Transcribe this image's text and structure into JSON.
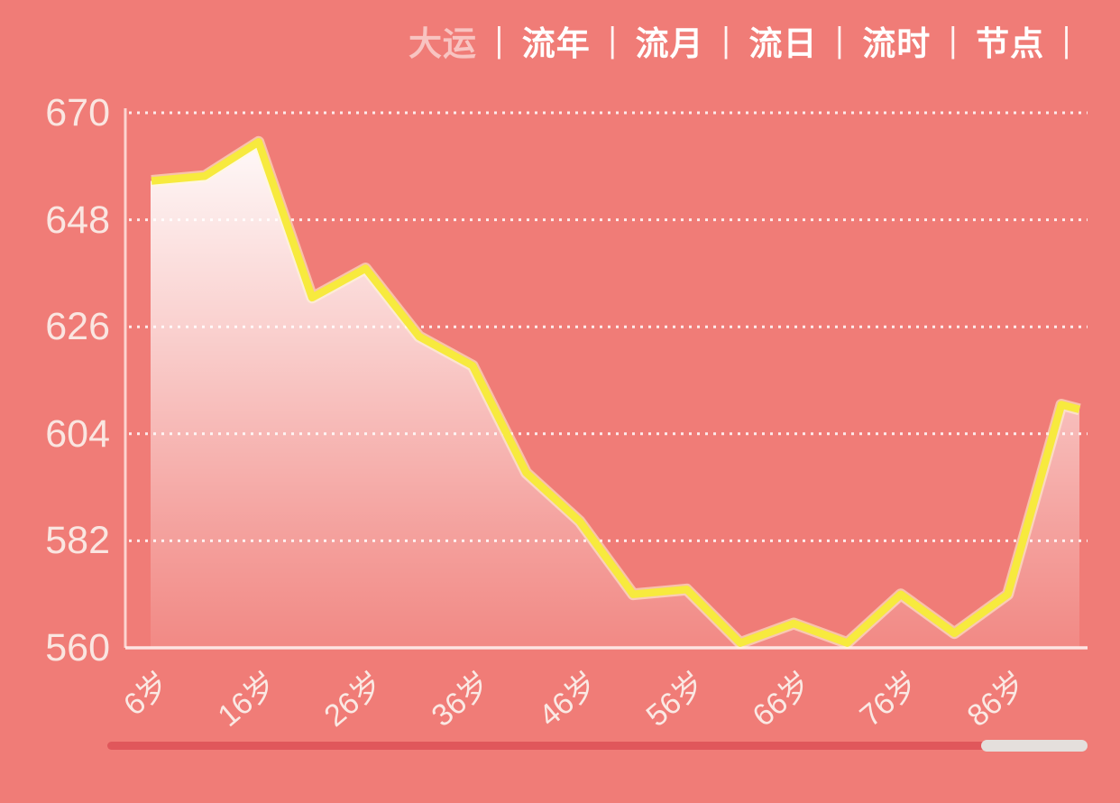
{
  "header": {
    "tabs": [
      {
        "label": "大运",
        "dim": true
      },
      {
        "label": "流年",
        "dim": false
      },
      {
        "label": "流月",
        "dim": false
      },
      {
        "label": "流日",
        "dim": false
      },
      {
        "label": "流时",
        "dim": false
      },
      {
        "label": "节点",
        "dim": false
      }
    ],
    "separator": "|"
  },
  "chart_data": {
    "type": "area",
    "title": "",
    "x_unit": "岁",
    "x": [
      6,
      11,
      16,
      21,
      26,
      31,
      36,
      41,
      46,
      51,
      56,
      61,
      66,
      71,
      76,
      81,
      86,
      91
    ],
    "values": [
      656,
      657,
      664,
      632,
      638,
      624,
      618,
      596,
      586,
      571,
      572,
      561,
      565,
      561,
      571,
      563,
      571,
      610
    ],
    "clipped_end_value": 609,
    "y_ticks": [
      670,
      648,
      626,
      604,
      582,
      560
    ],
    "x_tick_labels": [
      "6岁",
      "16岁",
      "26岁",
      "36岁",
      "46岁",
      "56岁",
      "66岁",
      "76岁",
      "86岁"
    ],
    "ylim": [
      560,
      670
    ],
    "grid": "horizontal-dotted",
    "legend": "none",
    "line_color": "#F7EA3E",
    "area_fill": "white gradient fading downward over coral background"
  },
  "colors": {
    "background": "#F07C77",
    "line": "#F7EA3E",
    "axis": "rgba(255,235,230,0.8)",
    "tick_label": "#FBEFEA",
    "tab_bright": "#FFFFFF",
    "tab_dim": "rgba(255,255,255,0.55)",
    "scrollbar_track": "#E0575B",
    "scrollbar_thumb": "#E4DFDC"
  }
}
